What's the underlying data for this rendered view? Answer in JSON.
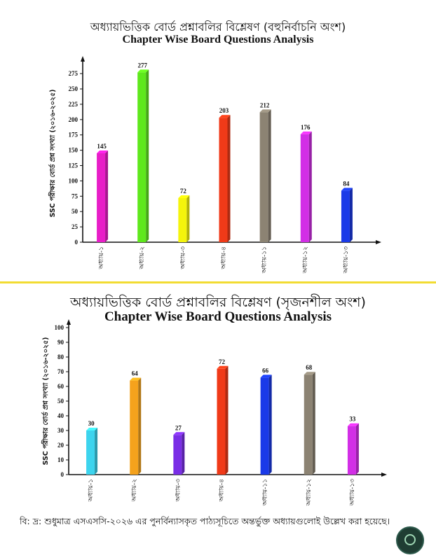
{
  "chart_data": [
    {
      "type": "bar",
      "title_bn": "অধ্যায়ভিত্তিক বোর্ড প্রশ্নাবলির বিশ্লেষণ (বহুনির্বাচনি অংশ)",
      "title": "Chapter Wise Board Questions Analysis",
      "ylabel": "SSC পরীক্ষার বোর্ড প্রশ্ন সংখ্যা (২০১৬-২০২৫)",
      "xlabel": "",
      "ylim": [
        0,
        290
      ],
      "yticks": [
        0,
        25,
        50,
        75,
        100,
        125,
        150,
        175,
        200,
        225,
        250,
        275
      ],
      "categories": [
        "অধ্যায়-১",
        "অধ্যায়-২",
        "অধ্যায়-৩",
        "অধ্যায়-৪",
        "অধ্যায়-১১",
        "অধ্যায়-১২",
        "অধ্যায়-১৩"
      ],
      "values": [
        145,
        277,
        72,
        203,
        212,
        176,
        84
      ],
      "colors": [
        "#e81ec8",
        "#5ee81c",
        "#f4f40c",
        "#f03a18",
        "#8c8373",
        "#d22ee6",
        "#1a3ae8"
      ],
      "grid": false
    },
    {
      "type": "bar",
      "title_bn": "অধ্যায়ভিত্তিক বোর্ড প্রশ্নাবলির বিশ্লেষণ (সৃজনশীল অংশ)",
      "title": "Chapter Wise Board Questions Analysis",
      "ylabel": "SSC পরীক্ষার বোর্ড প্রশ্ন সংখ্যা (২০১৬-২০২৫)",
      "xlabel": "",
      "ylim": [
        0,
        100
      ],
      "yticks": [
        0,
        10,
        20,
        30,
        40,
        50,
        60,
        70,
        80,
        90,
        100
      ],
      "categories": [
        "অধ্যায়-১",
        "অধ্যায়-২",
        "অধ্যায়-৩",
        "অধ্যায়-৪",
        "অধ্যায়-১১",
        "অধ্যায়-১২",
        "অধ্যায়-১৩"
      ],
      "values": [
        30,
        64,
        27,
        72,
        66,
        68,
        33
      ],
      "colors": [
        "#3cd4ee",
        "#f5a21c",
        "#7a2ee6",
        "#f03a18",
        "#1a3ae8",
        "#8c8373",
        "#d22ee6"
      ],
      "grid": false
    }
  ],
  "footnote": "বি: দ্র: শুধুমাত্র এসএসসি-২০২৬ এর পুনর্বিন্যাসকৃত পাঠ্যসূচিতে অন্তর্ভুক্ত অধ্যায়গুলোই উল্লেখ করা হয়েছে।"
}
